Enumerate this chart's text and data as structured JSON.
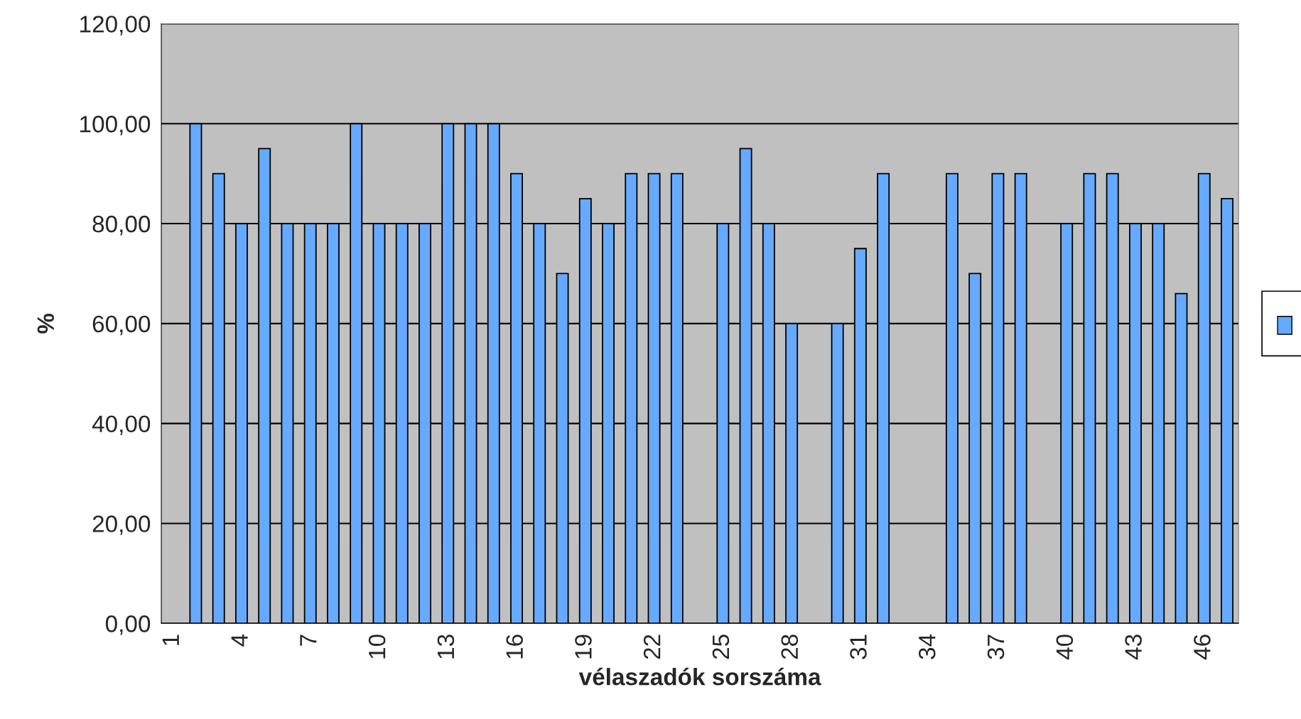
{
  "chart_data": {
    "type": "bar",
    "xlabel": "vélaszadók sorszáma",
    "ylabel": "%",
    "categories": [
      "1",
      null,
      null,
      "4",
      null,
      null,
      "7",
      null,
      null,
      "10",
      null,
      null,
      "13",
      null,
      null,
      "16",
      null,
      null,
      "19",
      null,
      null,
      "22",
      null,
      null,
      "25",
      null,
      null,
      "28",
      null,
      null,
      "31",
      null,
      null,
      "34",
      null,
      null,
      "37",
      null,
      null,
      "40",
      null,
      null,
      "43",
      null,
      null,
      "46",
      null
    ],
    "series": [
      {
        "color": "#66aaff",
        "values": [
          null,
          100,
          90,
          80,
          95,
          80,
          80,
          80,
          100,
          80,
          80,
          80,
          100,
          100,
          100,
          90,
          80,
          70,
          85,
          80,
          90,
          90,
          90,
          null,
          80,
          95,
          80,
          60,
          null,
          60,
          75,
          90,
          null,
          null,
          90,
          70,
          90,
          90,
          null,
          80,
          90,
          90,
          80,
          80,
          66,
          90,
          85
        ]
      }
    ],
    "ylim": [
      0,
      120
    ],
    "yticks": [
      {
        "value": 0,
        "label": "0,00"
      },
      {
        "value": 20,
        "label": "20,00"
      },
      {
        "value": 40,
        "label": "40,00"
      },
      {
        "value": 60,
        "label": "60,00"
      },
      {
        "value": 80,
        "label": "80,00"
      },
      {
        "value": 100,
        "label": "100,00"
      },
      {
        "value": 120,
        "label": "120,00"
      }
    ],
    "grid": "y"
  }
}
